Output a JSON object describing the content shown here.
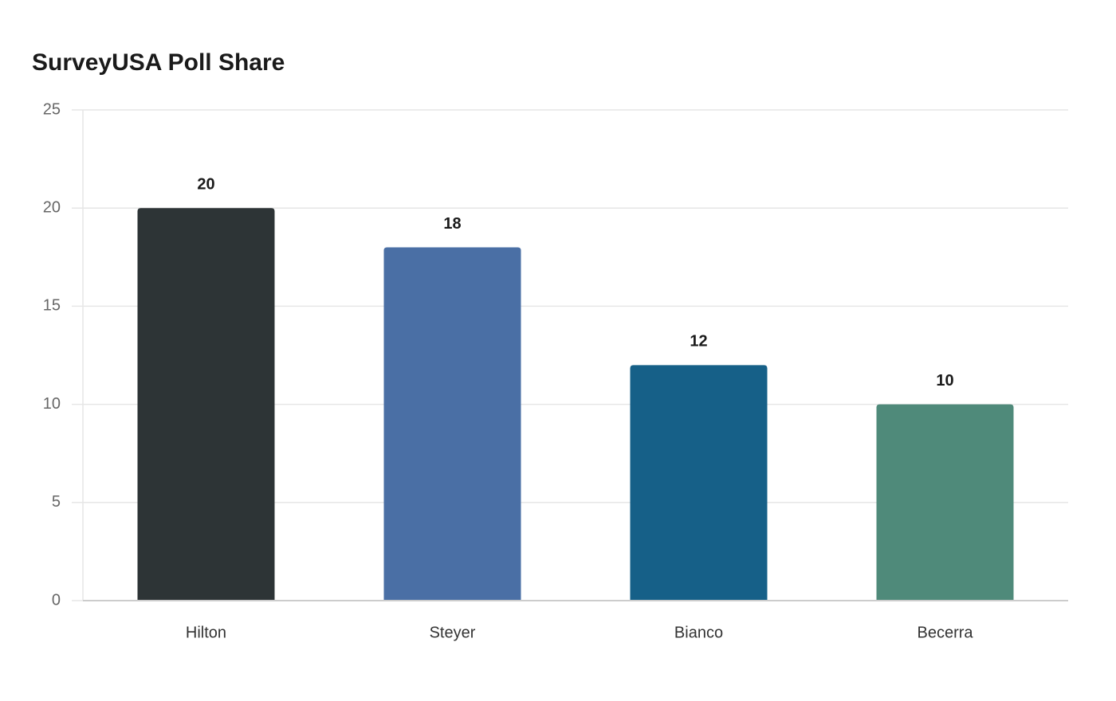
{
  "chart_data": {
    "type": "bar",
    "title": "SurveyUSA Poll Share",
    "categories": [
      "Hilton",
      "Steyer",
      "Bianco",
      "Becerra"
    ],
    "values": [
      20,
      18,
      12,
      10
    ],
    "colors": [
      "#2d3436",
      "#4a6fa5",
      "#166088",
      "#4f8a7a"
    ],
    "ylim": [
      0,
      25
    ],
    "yticks": [
      0,
      5,
      10,
      15,
      20,
      25
    ],
    "grid": true
  }
}
